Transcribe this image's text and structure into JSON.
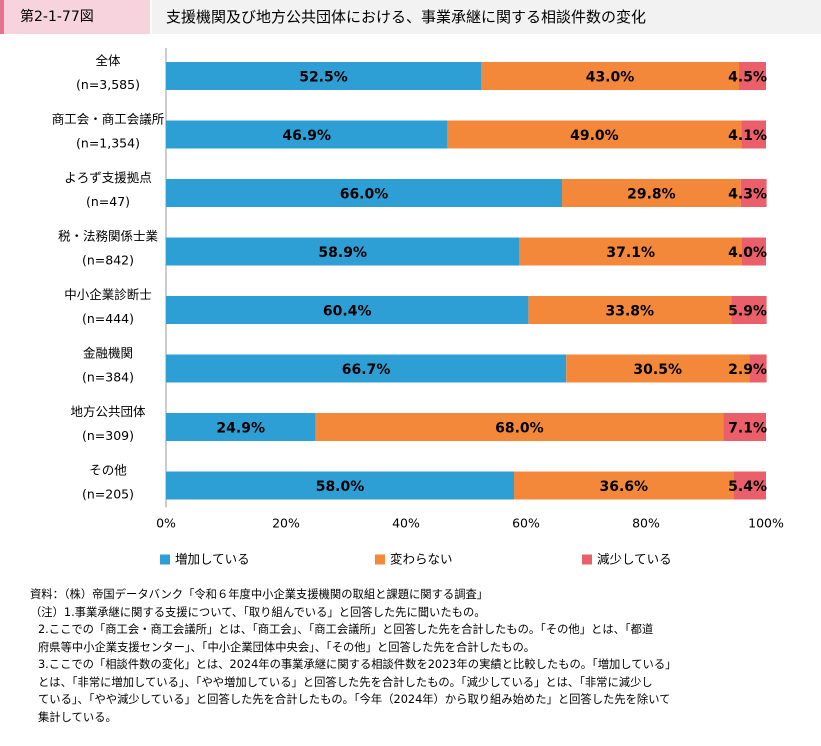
{
  "header": {
    "figure_id": "第2-1-77図",
    "title": "支援機関及び地方公共団体における、事業承継に関する相談件数の変化"
  },
  "chart_data": {
    "type": "bar",
    "orientation": "horizontal",
    "stacked": true,
    "categories": [
      "全体",
      "商工会・商工会議所",
      "よろず支援拠点",
      "税・法務関係士業",
      "中小企業診断士",
      "金融機関",
      "地方公共団体",
      "その他"
    ],
    "category_counts": [
      "(n=3,585)",
      "(n=1,354)",
      "(n=47)",
      "(n=842)",
      "(n=444)",
      "(n=384)",
      "(n=309)",
      "(n=205)"
    ],
    "series": [
      {
        "name": "増加している",
        "color": "#2e9fd5",
        "values": [
          52.5,
          46.9,
          66.0,
          58.9,
          60.4,
          66.7,
          24.9,
          58.0
        ],
        "labels": [
          "52.5%",
          "46.9%",
          "66.0%",
          "58.9%",
          "60.4%",
          "66.7%",
          "24.9%",
          "58.0%"
        ]
      },
      {
        "name": "変わらない",
        "color": "#f4883a",
        "values": [
          43.0,
          49.0,
          29.8,
          37.1,
          33.8,
          30.5,
          68.0,
          36.6
        ],
        "labels": [
          "43.0%",
          "49.0%",
          "29.8%",
          "37.1%",
          "33.8%",
          "30.5%",
          "68.0%",
          "36.6%"
        ]
      },
      {
        "name": "減少している",
        "color": "#ea5f6a",
        "values": [
          4.5,
          4.1,
          4.3,
          4.0,
          5.9,
          2.9,
          7.1,
          5.4
        ],
        "labels": [
          "4.5%",
          "4.1%",
          "4.3%",
          "4.0%",
          "5.9%",
          "2.9%",
          "7.1%",
          "5.4%"
        ]
      }
    ],
    "xlim": [
      0,
      100
    ],
    "x_ticks": [
      "0%",
      "20%",
      "40%",
      "60%",
      "80%",
      "100%"
    ],
    "legend_position": "bottom",
    "grid": false
  },
  "notes": {
    "source": "資料：（株）帝国データバンク「令和６年度中小企業支援機関の取組と課題に関する調査」",
    "note1": "（注）1.事業承継に関する支援について、「取り組んでいる」と回答した先に聞いたもの。",
    "note2_a": "2.ここでの「商工会・商工会議所」とは、「商工会」、「商工会議所」と回答した先を合計したもの。「その他」とは、「都道",
    "note2_b": "府県等中小企業支援センター」、「中小企業団体中央会」、「その他」と回答した先を合計したもの。",
    "note3_a": "3.ここでの「相談件数の変化」とは、2024年の事業承継に関する相談件数を2023年の実績と比較したもの。「増加している」",
    "note3_b": "とは、「非常に増加している」、「やや増加している」と回答した先を合計したもの。「減少している」とは、「非常に減少し",
    "note3_c": "ている」、「やや減少している」と回答した先を合計したもの。「今年（2024年）から取り組み始めた」と回答した先を除いて",
    "note3_d": "集計している。"
  }
}
